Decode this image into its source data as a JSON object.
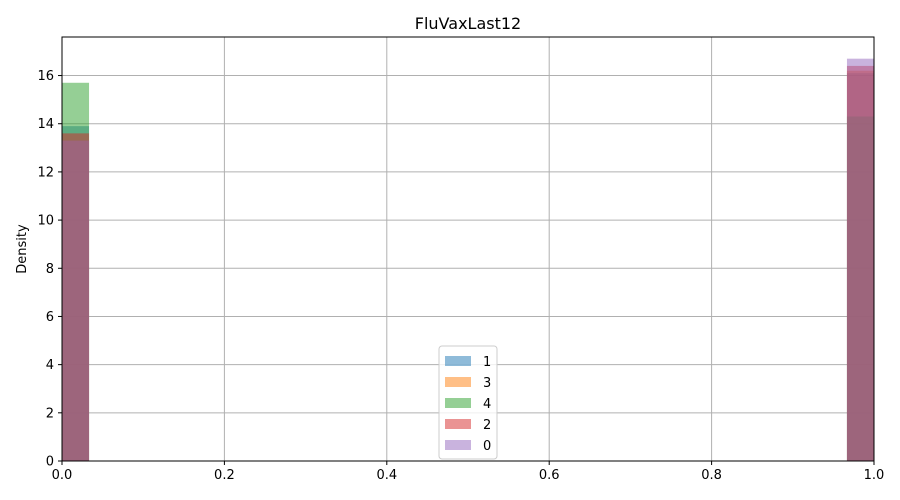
{
  "chart_data": {
    "type": "bar",
    "title": "FluVaxLast12",
    "xlabel": "",
    "ylabel": "Density",
    "xlim": [
      0,
      1
    ],
    "ylim": [
      0,
      17.6
    ],
    "xticks": [
      "0.0",
      "0.2",
      "0.4",
      "0.6",
      "0.8",
      "1.0"
    ],
    "yticks": [
      "0",
      "2",
      "4",
      "6",
      "8",
      "10",
      "12",
      "14",
      "16"
    ],
    "grid": true,
    "legend_position": "bottom-center",
    "bin_width": 0.0333,
    "bins": [
      0,
      0.9667
    ],
    "series": [
      {
        "name": "1",
        "color": "#1f77b4",
        "values": [
          13.9,
          16.1
        ]
      },
      {
        "name": "3",
        "color": "#ff7f0e",
        "values": [
          13.3,
          16.2
        ]
      },
      {
        "name": "4",
        "color": "#2ca02c",
        "values": [
          15.7,
          14.3
        ]
      },
      {
        "name": "2",
        "color": "#d62728",
        "values": [
          13.6,
          16.4
        ]
      },
      {
        "name": "0",
        "color": "#9467bd",
        "values": [
          13.3,
          16.7
        ]
      }
    ]
  }
}
